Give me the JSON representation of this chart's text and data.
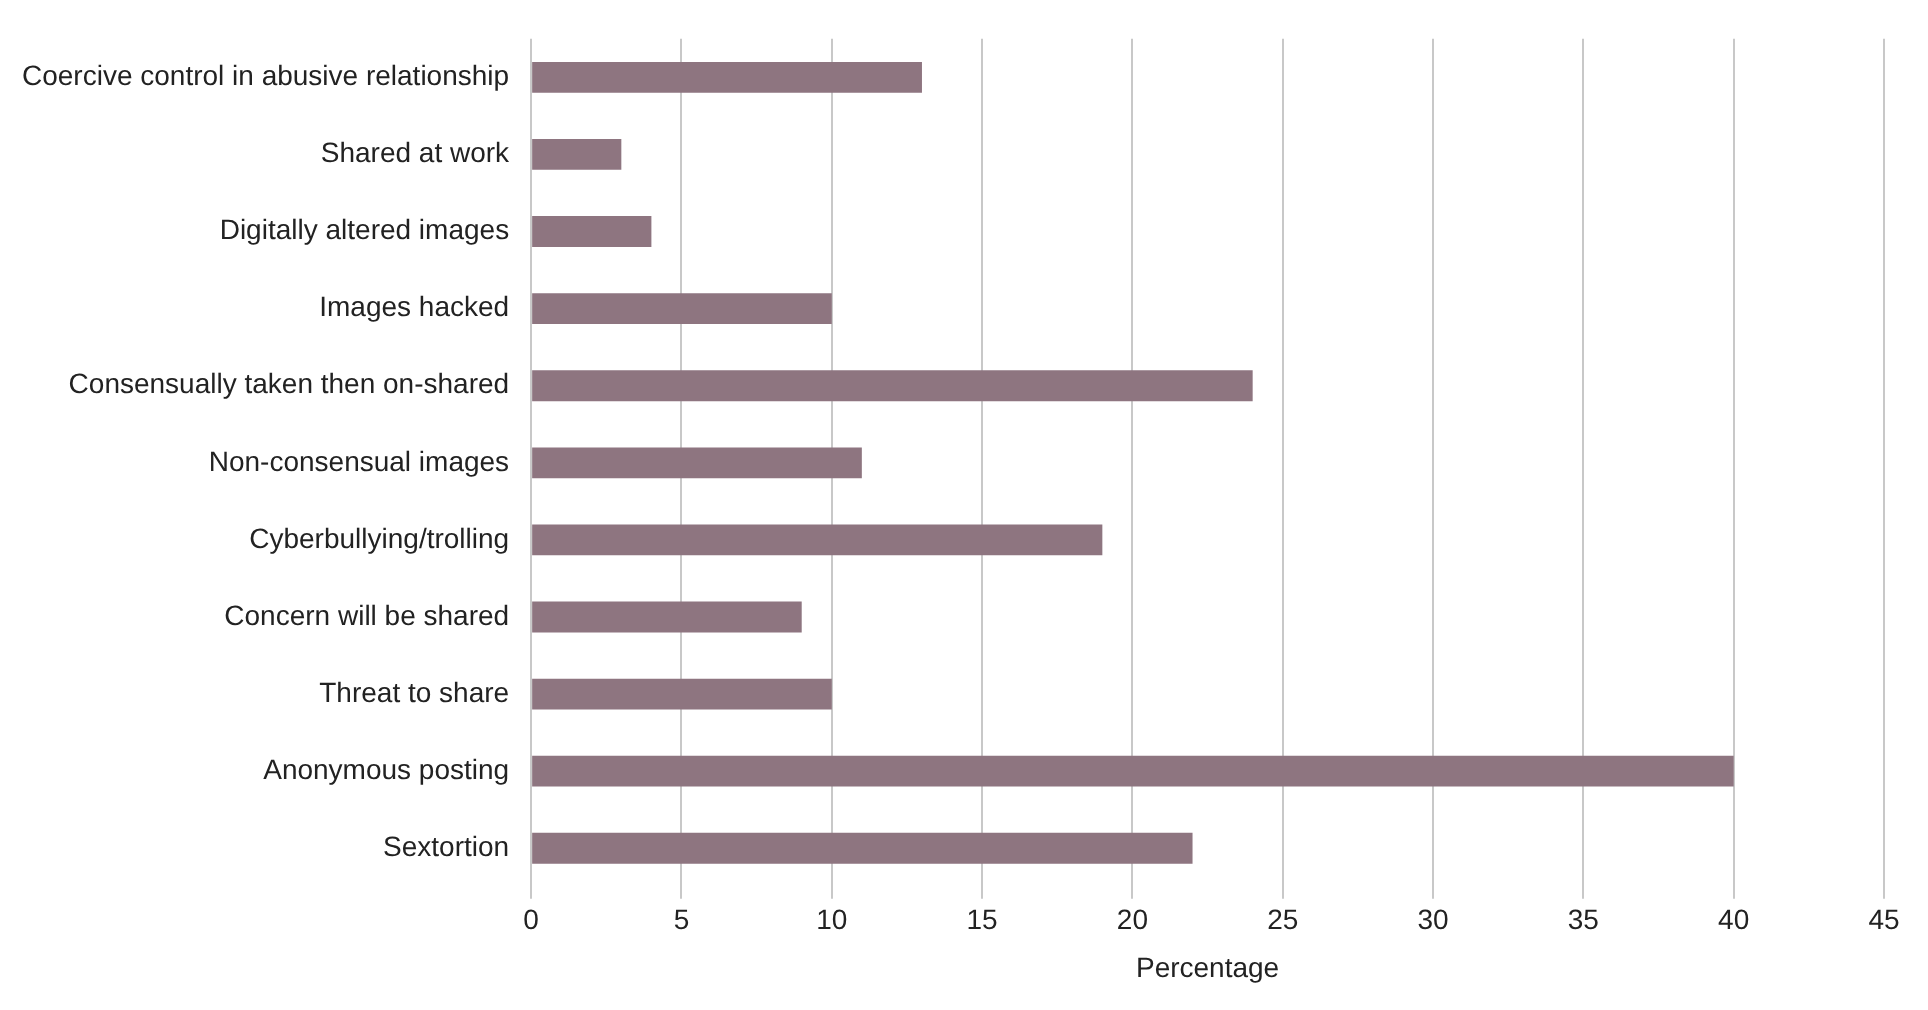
{
  "chart_data": {
    "type": "bar",
    "orientation": "horizontal",
    "xlabel": "Percentage",
    "categories": [
      "Coercive control in abusive relationship",
      "Shared at work",
      "Digitally altered images",
      "Images hacked",
      "Consensually taken then on-shared",
      "Non-consensual images",
      "Cyberbullying/trolling",
      "Concern will be shared",
      "Threat to share",
      "Anonymous posting",
      "Sextortion"
    ],
    "values": [
      13,
      3,
      4,
      10,
      24,
      11,
      19,
      9,
      10,
      40,
      22
    ],
    "color": "#8e7580",
    "xlim": [
      0,
      45
    ],
    "xticks": [
      0,
      5,
      10,
      15,
      20,
      25,
      30,
      35,
      40,
      45
    ],
    "grid": "x"
  }
}
